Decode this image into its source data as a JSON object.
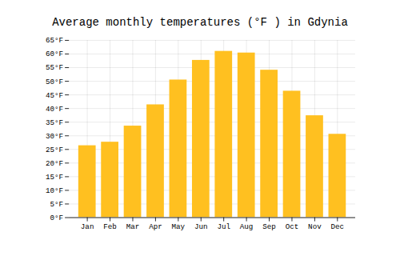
{
  "chart_data": {
    "type": "bar",
    "title": "Average monthly temperatures (°F ) in Gdynia",
    "categories": [
      "Jan",
      "Feb",
      "Mar",
      "Apr",
      "May",
      "Jun",
      "Jul",
      "Aug",
      "Sep",
      "Oct",
      "Nov",
      "Dec"
    ],
    "values": [
      26.4,
      27.7,
      33.6,
      41.4,
      50.5,
      57.7,
      61.0,
      60.4,
      54.1,
      46.4,
      37.4,
      30.6
    ],
    "color": "#FFC020",
    "ylim": [
      0,
      65
    ],
    "yticks": [
      {
        "value": 0,
        "label": "0°F"
      },
      {
        "value": 5,
        "label": "5°F"
      },
      {
        "value": 10,
        "label": "10°F"
      },
      {
        "value": 15,
        "label": "15°F"
      },
      {
        "value": 20,
        "label": "20°F"
      },
      {
        "value": 25,
        "label": "25°F"
      },
      {
        "value": 30,
        "label": "30°F"
      },
      {
        "value": 35,
        "label": "35°F"
      },
      {
        "value": 40,
        "label": "40°F"
      },
      {
        "value": 45,
        "label": "45°F"
      },
      {
        "value": 50,
        "label": "50°F"
      },
      {
        "value": 55,
        "label": "55°F"
      },
      {
        "value": 60,
        "label": "60°F"
      },
      {
        "value": 65,
        "label": "65°F"
      }
    ],
    "grid": true
  }
}
